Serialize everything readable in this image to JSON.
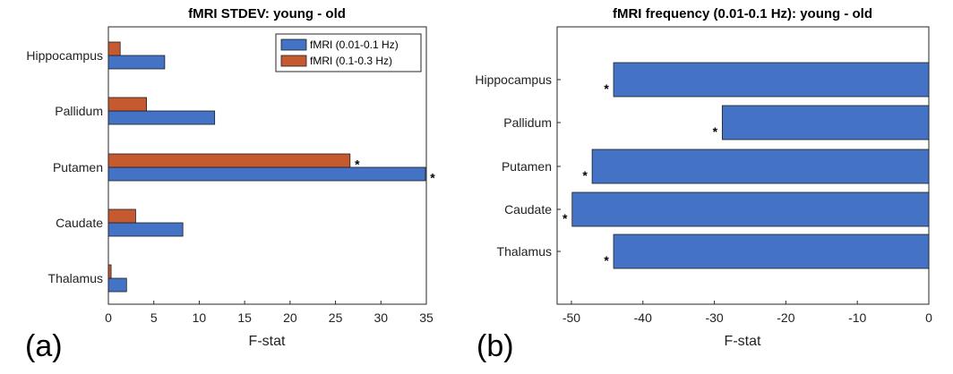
{
  "panel_labels": [
    "(a)",
    "(b)"
  ],
  "colors": {
    "series1": "#4472c4",
    "series2": "#c55a31",
    "axis": "#262626",
    "edge": "#1f1f1f"
  },
  "chart_data": [
    {
      "type": "bar",
      "orientation": "horizontal",
      "title": "fMRI STDEV: young - old",
      "xlabel": "F-stat",
      "ylabel": "",
      "xlim": [
        0,
        35
      ],
      "xticks": [
        0,
        5,
        10,
        15,
        20,
        25,
        30,
        35
      ],
      "categories": [
        "Hippocampus",
        "Pallidum",
        "Putamen",
        "Caudate",
        "Thalamus"
      ],
      "series": [
        {
          "name": "fMRI (0.01-0.1 Hz)",
          "color": "#4472c4",
          "values": [
            6.2,
            11.7,
            34.9,
            8.2,
            2.0
          ]
        },
        {
          "name": "fMRI (0.1-0.3 Hz)",
          "color": "#c55a31",
          "values": [
            1.3,
            4.2,
            26.6,
            3.0,
            0.3
          ]
        }
      ],
      "significance": [
        {
          "category": "Putamen",
          "series": 0,
          "label": "*"
        },
        {
          "category": "Putamen",
          "series": 1,
          "label": "*"
        }
      ],
      "legend_position": "top-right",
      "grid": false
    },
    {
      "type": "bar",
      "orientation": "horizontal",
      "title": "fMRI frequency (0.01-0.1 Hz): young - old",
      "xlabel": "F-stat",
      "ylabel": "",
      "xlim": [
        -52,
        0
      ],
      "xticks": [
        -50,
        -40,
        -30,
        -20,
        -10,
        0
      ],
      "categories": [
        "Hippocampus",
        "Pallidum",
        "Putamen",
        "Caudate",
        "Thalamus"
      ],
      "series": [
        {
          "name": "fMRI (0.01-0.1 Hz)",
          "color": "#4472c4",
          "values": [
            -44.1,
            -28.9,
            -47.1,
            -49.9,
            -44.1
          ]
        }
      ],
      "significance": [
        {
          "category": "Hippocampus",
          "series": 0,
          "label": "*"
        },
        {
          "category": "Pallidum",
          "series": 0,
          "label": "*"
        },
        {
          "category": "Putamen",
          "series": 0,
          "label": "*"
        },
        {
          "category": "Caudate",
          "series": 0,
          "label": "*"
        },
        {
          "category": "Thalamus",
          "series": 0,
          "label": "*"
        }
      ],
      "grid": false
    }
  ]
}
